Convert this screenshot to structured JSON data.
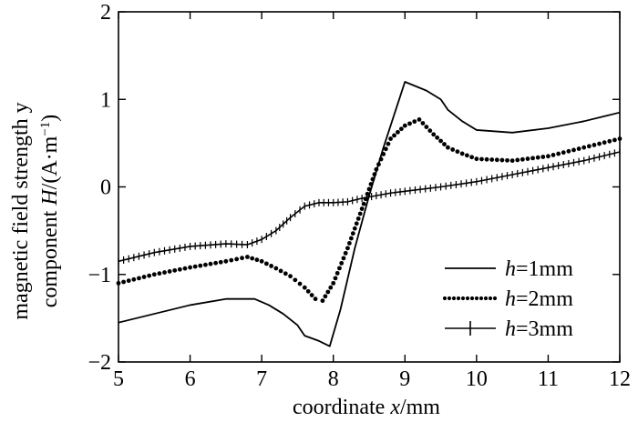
{
  "chart_data": {
    "type": "line",
    "title": "",
    "xlabel": {
      "prefix": "coordinate ",
      "var": "x",
      "suffix": "/mm"
    },
    "ylabel": {
      "line1": "magnetic field strength y",
      "line2": {
        "prefix": "component ",
        "var": "H",
        "unit_open": "/(A·m",
        "exp": "−1",
        "unit_close": ")"
      }
    },
    "xlim": [
      5,
      12
    ],
    "ylim": [
      -2,
      2
    ],
    "xticks": [
      "5",
      "6",
      "7",
      "8",
      "9",
      "10",
      "11",
      "12"
    ],
    "yticks": [
      "−2",
      "−1",
      "0",
      "1",
      "2"
    ],
    "grid": false,
    "legend_position": "bottom-right",
    "series": [
      {
        "name": "h=1mm",
        "label_var": "h",
        "label_rest": "=1mm",
        "style": "solid",
        "x": [
          5.0,
          5.5,
          6.0,
          6.5,
          6.9,
          7.1,
          7.3,
          7.5,
          7.6,
          7.8,
          7.95,
          8.1,
          8.3,
          8.5,
          8.7,
          8.9,
          9.0,
          9.3,
          9.5,
          9.6,
          9.8,
          10.0,
          10.5,
          11.0,
          11.5,
          12.0
        ],
        "y": [
          -1.55,
          -1.45,
          -1.35,
          -1.28,
          -1.28,
          -1.35,
          -1.45,
          -1.58,
          -1.7,
          -1.76,
          -1.82,
          -1.4,
          -0.7,
          -0.1,
          0.45,
          0.95,
          1.2,
          1.1,
          1.0,
          0.88,
          0.75,
          0.65,
          0.62,
          0.67,
          0.75,
          0.85
        ]
      },
      {
        "name": "h=2mm",
        "label_var": "h",
        "label_rest": "=2mm",
        "style": "dotted",
        "x": [
          5.0,
          5.5,
          6.0,
          6.5,
          6.8,
          7.0,
          7.2,
          7.4,
          7.6,
          7.75,
          7.85,
          8.0,
          8.2,
          8.4,
          8.6,
          8.8,
          9.0,
          9.2,
          9.4,
          9.6,
          9.8,
          10.0,
          10.5,
          11.0,
          11.5,
          12.0
        ],
        "y": [
          -1.1,
          -1.0,
          -0.92,
          -0.85,
          -0.8,
          -0.85,
          -0.93,
          -1.02,
          -1.15,
          -1.28,
          -1.3,
          -1.1,
          -0.7,
          -0.25,
          0.2,
          0.55,
          0.7,
          0.77,
          0.6,
          0.45,
          0.38,
          0.32,
          0.3,
          0.35,
          0.45,
          0.55
        ]
      },
      {
        "name": "h=3mm",
        "label_var": "h",
        "label_rest": "=3mm",
        "style": "plus",
        "x": [
          5.0,
          5.5,
          6.0,
          6.5,
          6.8,
          7.0,
          7.2,
          7.4,
          7.6,
          7.8,
          8.0,
          8.2,
          8.4,
          8.6,
          8.8,
          9.0,
          9.5,
          10.0,
          10.5,
          11.0,
          11.5,
          12.0
        ],
        "y": [
          -0.85,
          -0.75,
          -0.68,
          -0.65,
          -0.66,
          -0.6,
          -0.5,
          -0.35,
          -0.22,
          -0.18,
          -0.18,
          -0.17,
          -0.13,
          -0.1,
          -0.07,
          -0.05,
          0.0,
          0.06,
          0.14,
          0.22,
          0.3,
          0.4
        ]
      }
    ]
  }
}
